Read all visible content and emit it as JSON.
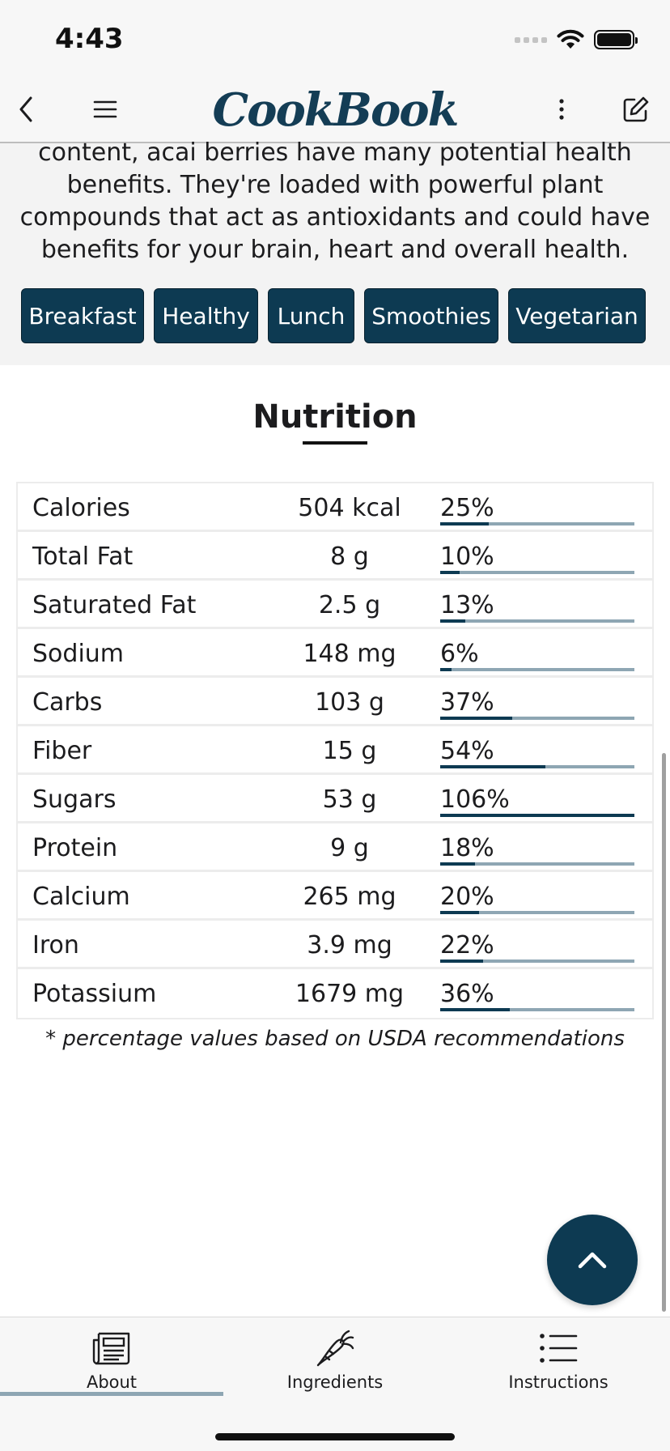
{
  "status_bar": {
    "time": "4:43"
  },
  "header": {
    "logo_text": "CookBook"
  },
  "description": {
    "text": "content, acai berries have many potential health benefits. They're loaded with powerful plant compounds that act as antioxidants and could have benefits for your brain, heart and overall health."
  },
  "tags": [
    {
      "label": "Breakfast"
    },
    {
      "label": "Healthy"
    },
    {
      "label": "Lunch"
    },
    {
      "label": "Smoothies"
    },
    {
      "label": "Vegetarian"
    }
  ],
  "nutrition": {
    "title": "Nutrition",
    "rows": [
      {
        "name": "Calories",
        "amount": "504 kcal",
        "percent_label": "25%",
        "percent": 25
      },
      {
        "name": "Total Fat",
        "amount": "8 g",
        "percent_label": "10%",
        "percent": 10
      },
      {
        "name": "Saturated Fat",
        "amount": "2.5 g",
        "percent_label": "13%",
        "percent": 13
      },
      {
        "name": "Sodium",
        "amount": "148 mg",
        "percent_label": "6%",
        "percent": 6
      },
      {
        "name": "Carbs",
        "amount": "103 g",
        "percent_label": "37%",
        "percent": 37
      },
      {
        "name": "Fiber",
        "amount": "15 g",
        "percent_label": "54%",
        "percent": 54
      },
      {
        "name": "Sugars",
        "amount": "53 g",
        "percent_label": "106%",
        "percent": 106
      },
      {
        "name": "Protein",
        "amount": "9 g",
        "percent_label": "18%",
        "percent": 18
      },
      {
        "name": "Calcium",
        "amount": "265 mg",
        "percent_label": "20%",
        "percent": 20
      },
      {
        "name": "Iron",
        "amount": "3.9 mg",
        "percent_label": "22%",
        "percent": 22
      },
      {
        "name": "Potassium",
        "amount": "1679 mg",
        "percent_label": "36%",
        "percent": 36
      }
    ],
    "footnote": "* percentage values based on USDA recommendations"
  },
  "tab_bar": {
    "tabs": [
      {
        "label": "About",
        "icon": "newspaper-icon",
        "active": true
      },
      {
        "label": "Ingredients",
        "icon": "carrot-icon",
        "active": false
      },
      {
        "label": "Instructions",
        "icon": "list-icon",
        "active": false
      }
    ]
  },
  "colors": {
    "brand": "#0d3a52",
    "bar_track": "#8ea6b3",
    "tag_text": "#ffffff"
  }
}
